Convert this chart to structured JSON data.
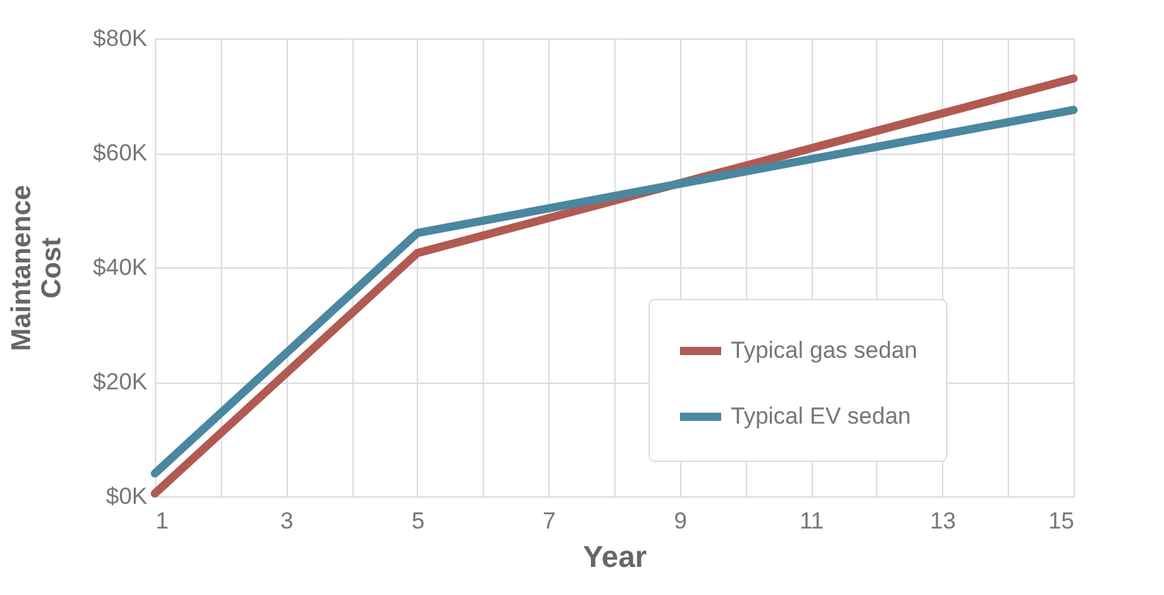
{
  "chart_data": {
    "type": "line",
    "xlabel": "Year",
    "ylabel": "Maintanence\nCost",
    "series": [
      {
        "name": "Typical gas sedan",
        "color": "#b05a52",
        "x": [
          1,
          5,
          15
        ],
        "values": [
          500,
          42500,
          73000
        ]
      },
      {
        "name": "Typical EV sedan",
        "color": "#4a87a0",
        "x": [
          1,
          5,
          15
        ],
        "values": [
          4000,
          46000,
          67500
        ]
      }
    ],
    "xlim": [
      1,
      15
    ],
    "xticks": [
      1,
      {
        "value": 2,
        "label": null
      },
      3,
      {
        "value": 4,
        "label": null
      },
      5,
      {
        "value": 6,
        "label": null
      },
      7,
      {
        "value": 8,
        "label": null
      },
      9,
      {
        "value": 10,
        "label": null
      },
      11,
      {
        "value": 12,
        "label": null
      },
      13,
      {
        "value": 14,
        "label": null
      },
      15
    ],
    "ylim": [
      0,
      80000
    ],
    "yticks": [
      {
        "value": 0,
        "label": "$0K"
      },
      {
        "value": 20000,
        "label": "$20K"
      },
      {
        "value": 40000,
        "label": "$40K"
      },
      {
        "value": 60000,
        "label": "$60K"
      },
      {
        "value": 80000,
        "label": "$80K"
      }
    ],
    "grid": true,
    "legend": "right",
    "marker": "none",
    "line_style": "solid"
  }
}
